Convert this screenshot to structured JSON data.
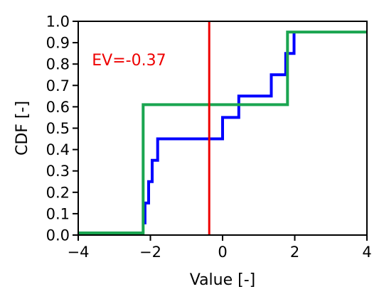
{
  "chart_data": {
    "type": "line",
    "xlabel": "Value [-]",
    "ylabel": "CDF [-]",
    "xlim": [
      -4,
      4
    ],
    "ylim": [
      0,
      1
    ],
    "xticks": [
      -4,
      -2,
      0,
      2,
      4
    ],
    "xtick_labels": [
      "−4",
      "−2",
      "0",
      "2",
      "4"
    ],
    "yticks": [
      0.0,
      0.1,
      0.2,
      0.3,
      0.4,
      0.5,
      0.6,
      0.7,
      0.8,
      0.9,
      1.0
    ],
    "ytick_labels": [
      "0.0",
      "0.1",
      "0.2",
      "0.3",
      "0.4",
      "0.5",
      "0.6",
      "0.7",
      "0.8",
      "0.9",
      "1.0"
    ],
    "grid": false,
    "series": [
      {
        "color": "#0000ff",
        "style": "step",
        "x": [
          -2.15,
          -2.15,
          -2.05,
          -2.05,
          -1.95,
          -1.95,
          -1.8,
          -1.8,
          -1.3,
          -1.3,
          0.0,
          0.0,
          0.45,
          0.45,
          1.35,
          1.35,
          1.75,
          1.75,
          1.98,
          1.98
        ],
        "y": [
          0.05,
          0.15,
          0.15,
          0.25,
          0.25,
          0.35,
          0.35,
          0.45,
          0.45,
          0.45,
          0.45,
          0.55,
          0.55,
          0.65,
          0.65,
          0.75,
          0.75,
          0.85,
          0.85,
          0.95
        ]
      },
      {
        "color": "#1aa550",
        "style": "step",
        "x": [
          -4,
          -2.2,
          -2.2,
          1.8,
          1.8,
          4
        ],
        "y": [
          0.01,
          0.01,
          0.61,
          0.61,
          0.95,
          0.95
        ]
      }
    ],
    "vlines": [
      {
        "x": -0.37,
        "color": "#ee0000"
      }
    ],
    "annotations": [
      {
        "text": "EV=-0.37",
        "x": -3.62,
        "y": 0.82,
        "color": "#ee0000"
      }
    ]
  }
}
